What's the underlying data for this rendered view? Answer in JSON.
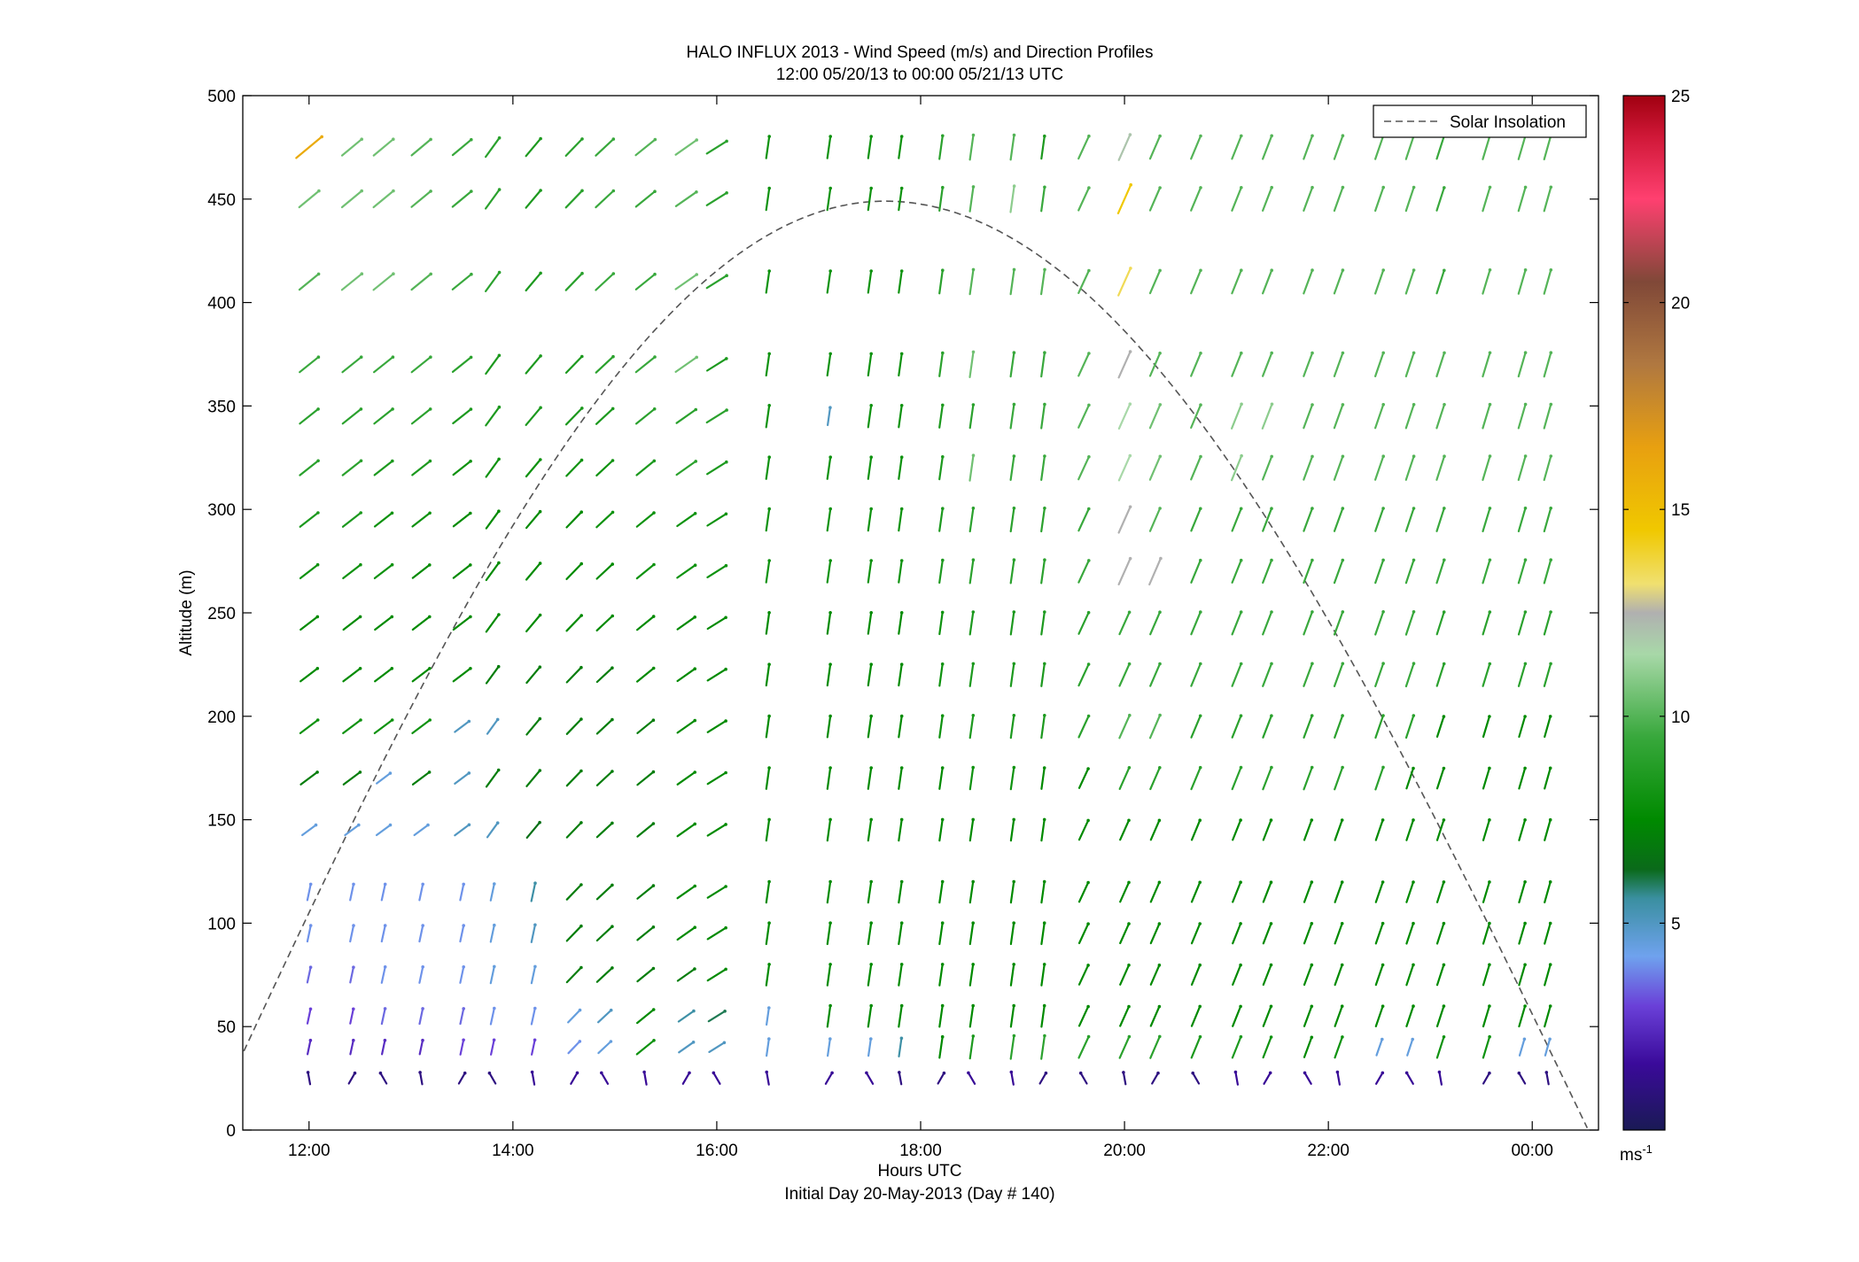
{
  "chart_data": {
    "type": "quiver",
    "title": "HALO INFLUX 2013 - Wind Speed (m/s) and Direction Profiles",
    "subtitle": "12:00 05/20/13 to 00:00 05/21/13  UTC",
    "xlabel": "Hours UTC",
    "xlabel2": "Initial Day 20-May-2013 (Day # 140)",
    "ylabel": "Altitude (m)",
    "x_tick_labels": [
      "12:00",
      "14:00",
      "16:00",
      "18:00",
      "20:00",
      "22:00",
      "00:00"
    ],
    "x_tick_hours": [
      12,
      14,
      16,
      18,
      20,
      22,
      24
    ],
    "xlim_hours": [
      11.35,
      24.65
    ],
    "y_ticks": [
      0,
      50,
      100,
      150,
      200,
      250,
      300,
      350,
      400,
      450,
      500
    ],
    "ylim": [
      0,
      500
    ],
    "grid": false,
    "legend": {
      "position": "top-right",
      "entries": [
        {
          "name": "Solar Insolation",
          "style": "dashed",
          "color": "#555555"
        }
      ]
    },
    "solar_insolation": {
      "peak_hour": 17.65,
      "peak_altitude_equiv": 449,
      "zero_hour_start": 11.0,
      "zero_hour_end": 24.55
    },
    "colorbar": {
      "ticks": [
        5,
        10,
        15,
        20,
        25
      ],
      "range": [
        0,
        25
      ],
      "unit_label": "ms",
      "unit_exponent": "-1",
      "stops": [
        {
          "v": 0.0,
          "c": "#1a1a55"
        },
        {
          "v": 1.6,
          "c": "#3a0a9a"
        },
        {
          "v": 3.0,
          "c": "#6a40d8"
        },
        {
          "v": 4.2,
          "c": "#6fa2ee"
        },
        {
          "v": 5.6,
          "c": "#3a8fa0"
        },
        {
          "v": 6.3,
          "c": "#0a6a1a"
        },
        {
          "v": 7.5,
          "c": "#008a00"
        },
        {
          "v": 9.5,
          "c": "#38a83c"
        },
        {
          "v": 11.5,
          "c": "#a8d8a8"
        },
        {
          "v": 12.5,
          "c": "#b0b0b0"
        },
        {
          "v": 13.2,
          "c": "#f0e070"
        },
        {
          "v": 14.5,
          "c": "#f0c800"
        },
        {
          "v": 16.5,
          "c": "#e8a010"
        },
        {
          "v": 18.5,
          "c": "#b07840"
        },
        {
          "v": 20.5,
          "c": "#804838"
        },
        {
          "v": 22.5,
          "c": "#ff4070"
        },
        {
          "v": 24.0,
          "c": "#d01838"
        },
        {
          "v": 25.0,
          "c": "#a00010"
        }
      ]
    },
    "altitude_levels": [
      25,
      40,
      55,
      75,
      95,
      115,
      145,
      170,
      195,
      220,
      245,
      270,
      295,
      320,
      345,
      370,
      410,
      450,
      475
    ],
    "time_hours": [
      12.0,
      12.42,
      12.73,
      13.1,
      13.5,
      13.8,
      14.2,
      14.6,
      14.9,
      15.3,
      15.7,
      16.0,
      16.5,
      17.1,
      17.5,
      17.8,
      18.2,
      18.5,
      18.9,
      19.2,
      19.6,
      20.0,
      20.3,
      20.7,
      21.1,
      21.4,
      21.8,
      22.1,
      22.5,
      22.8,
      23.1,
      23.55,
      23.9,
      24.15
    ],
    "wind_vectors": {
      "speed_ms": [
        [
          1.0,
          1.0,
          1.0,
          1.0,
          1.0,
          1.0,
          1.5,
          1.5,
          1.5,
          1.5,
          1.5,
          1.5,
          1.5,
          1.5,
          1.5,
          1.0,
          1.0,
          1.5,
          1.5,
          1.0,
          1.0,
          1.0,
          1.0,
          1.0,
          1.5,
          1.5,
          1.5,
          1.5,
          1.5,
          1.5,
          1.5,
          1.0,
          1.0,
          1.0
        ],
        [
          2.5,
          2.5,
          2.5,
          2.5,
          3.0,
          3.0,
          3.0,
          4.0,
          4.5,
          8.0,
          5.0,
          5.0,
          4.5,
          4.5,
          4.5,
          5.5,
          7.5,
          8.5,
          9.0,
          9.0,
          9.0,
          9.0,
          9.0,
          8.5,
          8.5,
          8.0,
          7.5,
          8.0,
          4.5,
          4.5,
          8.0,
          8.0,
          4.5,
          4.5
        ],
        [
          3.0,
          3.0,
          3.5,
          3.5,
          3.5,
          4.0,
          4.0,
          4.5,
          5.0,
          7.5,
          5.5,
          6.0,
          4.5,
          7.5,
          7.5,
          7.5,
          7.5,
          7.5,
          7.5,
          7.5,
          7.5,
          7.5,
          7.5,
          7.5,
          7.5,
          7.5,
          7.5,
          7.5,
          7.5,
          7.5,
          7.5,
          7.5,
          7.5,
          7.5
        ],
        [
          3.5,
          3.5,
          4.0,
          4.0,
          4.0,
          4.5,
          4.5,
          7.0,
          7.0,
          7.0,
          7.0,
          7.5,
          7.5,
          7.5,
          7.5,
          7.5,
          7.5,
          7.5,
          7.5,
          7.5,
          7.5,
          7.5,
          7.5,
          7.5,
          7.5,
          7.5,
          7.5,
          7.5,
          7.5,
          7.5,
          7.5,
          7.5,
          7.5,
          7.5
        ],
        [
          4.0,
          4.0,
          4.0,
          4.0,
          4.0,
          4.5,
          5.0,
          7.0,
          7.0,
          7.0,
          7.5,
          7.5,
          7.5,
          7.5,
          7.5,
          7.5,
          7.5,
          7.5,
          7.5,
          7.5,
          7.5,
          7.5,
          7.5,
          7.5,
          7.5,
          7.5,
          7.5,
          7.5,
          7.5,
          7.5,
          7.5,
          7.5,
          7.5,
          7.5
        ],
        [
          4.0,
          4.0,
          4.0,
          4.0,
          4.0,
          4.5,
          5.5,
          7.0,
          7.0,
          7.0,
          7.5,
          7.5,
          7.5,
          7.5,
          7.5,
          7.5,
          7.5,
          7.5,
          7.5,
          7.5,
          7.5,
          7.5,
          7.5,
          7.5,
          7.5,
          7.5,
          7.5,
          7.5,
          7.5,
          7.5,
          7.5,
          7.5,
          7.5,
          7.5
        ],
        [
          4.5,
          4.5,
          4.5,
          4.5,
          5.0,
          5.0,
          6.5,
          7.0,
          7.0,
          7.0,
          7.5,
          7.5,
          7.5,
          7.5,
          7.5,
          7.5,
          7.5,
          7.5,
          7.5,
          7.5,
          7.5,
          7.5,
          7.5,
          7.5,
          7.5,
          7.5,
          7.5,
          7.5,
          7.5,
          7.5,
          7.5,
          7.5,
          7.5,
          7.5
        ],
        [
          7.0,
          7.0,
          4.5,
          7.0,
          5.0,
          7.0,
          7.0,
          7.0,
          7.0,
          7.0,
          7.5,
          7.5,
          7.5,
          7.5,
          7.5,
          7.5,
          7.5,
          8.0,
          8.0,
          7.5,
          7.5,
          9.0,
          9.0,
          9.0,
          9.0,
          9.0,
          9.0,
          9.0,
          9.0,
          7.5,
          7.5,
          7.5,
          7.5,
          7.5
        ],
        [
          8.0,
          8.0,
          8.0,
          8.0,
          5.0,
          5.0,
          7.0,
          7.0,
          7.0,
          7.0,
          7.5,
          7.5,
          7.5,
          7.5,
          7.5,
          7.5,
          8.0,
          8.5,
          8.5,
          8.5,
          9.0,
          10.0,
          10.0,
          9.0,
          9.0,
          9.0,
          9.0,
          9.0,
          9.0,
          9.0,
          7.5,
          7.5,
          7.5,
          7.5
        ],
        [
          7.5,
          7.5,
          7.5,
          7.5,
          7.5,
          7.0,
          7.0,
          7.0,
          7.0,
          7.5,
          7.5,
          7.5,
          7.5,
          7.5,
          7.5,
          7.5,
          8.0,
          8.5,
          8.5,
          8.5,
          9.0,
          9.5,
          9.5,
          9.5,
          9.5,
          9.5,
          9.5,
          9.5,
          9.5,
          9.5,
          9.0,
          9.0,
          9.0,
          9.0
        ],
        [
          7.5,
          7.5,
          7.5,
          7.5,
          7.5,
          7.5,
          7.5,
          7.5,
          7.5,
          7.5,
          7.5,
          7.5,
          7.5,
          7.5,
          7.5,
          7.5,
          8.0,
          8.5,
          8.5,
          8.5,
          9.0,
          9.5,
          9.5,
          9.5,
          9.5,
          9.5,
          9.5,
          9.5,
          9.5,
          9.5,
          9.0,
          9.0,
          9.0,
          9.0
        ],
        [
          8.0,
          8.0,
          8.0,
          7.5,
          7.5,
          7.5,
          7.5,
          7.5,
          7.5,
          8.0,
          8.0,
          8.0,
          8.0,
          8.0,
          8.0,
          8.0,
          8.5,
          9.0,
          9.0,
          9.0,
          9.5,
          12.5,
          12.5,
          9.5,
          9.5,
          9.5,
          9.5,
          9.5,
          9.5,
          9.5,
          9.5,
          9.5,
          9.5,
          9.5
        ],
        [
          8.5,
          8.5,
          8.0,
          8.0,
          7.5,
          7.5,
          7.5,
          7.5,
          8.0,
          8.0,
          8.0,
          8.0,
          8.0,
          8.0,
          8.0,
          8.0,
          8.5,
          9.0,
          9.0,
          9.0,
          9.5,
          12.5,
          10.0,
          9.5,
          9.5,
          9.5,
          9.5,
          9.5,
          9.5,
          9.5,
          9.5,
          9.5,
          9.5,
          9.5
        ],
        [
          9.0,
          9.0,
          8.5,
          8.5,
          8.0,
          8.0,
          8.0,
          8.0,
          8.0,
          8.5,
          9.0,
          8.5,
          8.0,
          8.0,
          8.0,
          8.0,
          8.5,
          10.5,
          9.5,
          9.5,
          10.0,
          11.5,
          10.5,
          10.0,
          11.0,
          10.0,
          10.0,
          10.0,
          10.0,
          10.0,
          10.0,
          10.0,
          10.0,
          10.0
        ],
        [
          9.0,
          9.0,
          9.0,
          9.0,
          8.5,
          8.5,
          8.5,
          8.5,
          8.5,
          9.0,
          9.0,
          9.0,
          8.0,
          5.0,
          8.0,
          8.0,
          8.5,
          9.0,
          9.5,
          9.5,
          10.0,
          11.5,
          10.5,
          10.0,
          11.0,
          11.0,
          10.0,
          10.0,
          10.0,
          10.0,
          10.0,
          10.0,
          10.0,
          10.0
        ],
        [
          9.5,
          9.5,
          9.5,
          9.5,
          9.0,
          8.5,
          8.5,
          8.5,
          9.0,
          9.5,
          10.5,
          8.5,
          8.0,
          8.0,
          8.0,
          8.0,
          9.0,
          10.5,
          9.5,
          9.5,
          10.0,
          12.5,
          10.0,
          10.0,
          10.0,
          10.0,
          10.0,
          10.0,
          10.0,
          10.0,
          10.0,
          10.0,
          10.0,
          10.0
        ],
        [
          10.0,
          10.5,
          10.5,
          10.0,
          9.5,
          9.0,
          8.5,
          9.0,
          9.5,
          9.5,
          10.5,
          9.0,
          8.0,
          8.0,
          8.0,
          8.0,
          9.0,
          10.0,
          10.0,
          10.0,
          10.0,
          13.5,
          10.0,
          10.0,
          10.0,
          10.0,
          10.0,
          10.0,
          10.0,
          10.0,
          9.5,
          10.0,
          10.0,
          10.0
        ],
        [
          10.5,
          10.5,
          10.5,
          10.0,
          9.5,
          9.0,
          8.5,
          9.0,
          9.5,
          9.5,
          10.0,
          9.0,
          8.0,
          8.0,
          8.0,
          8.0,
          9.0,
          10.0,
          11.0,
          9.5,
          10.0,
          14.5,
          10.0,
          10.0,
          10.0,
          10.0,
          10.0,
          10.0,
          10.0,
          10.0,
          9.5,
          10.0,
          10.0,
          10.0
        ],
        [
          16.0,
          10.5,
          10.5,
          10.0,
          9.5,
          9.0,
          8.5,
          9.0,
          9.5,
          10.0,
          10.5,
          9.0,
          8.0,
          8.0,
          8.0,
          8.0,
          9.0,
          10.0,
          10.0,
          8.5,
          10.0,
          12.0,
          10.0,
          10.0,
          10.0,
          10.0,
          10.0,
          10.0,
          10.0,
          10.0,
          9.5,
          10.0,
          10.0,
          10.0
        ]
      ]
    }
  }
}
